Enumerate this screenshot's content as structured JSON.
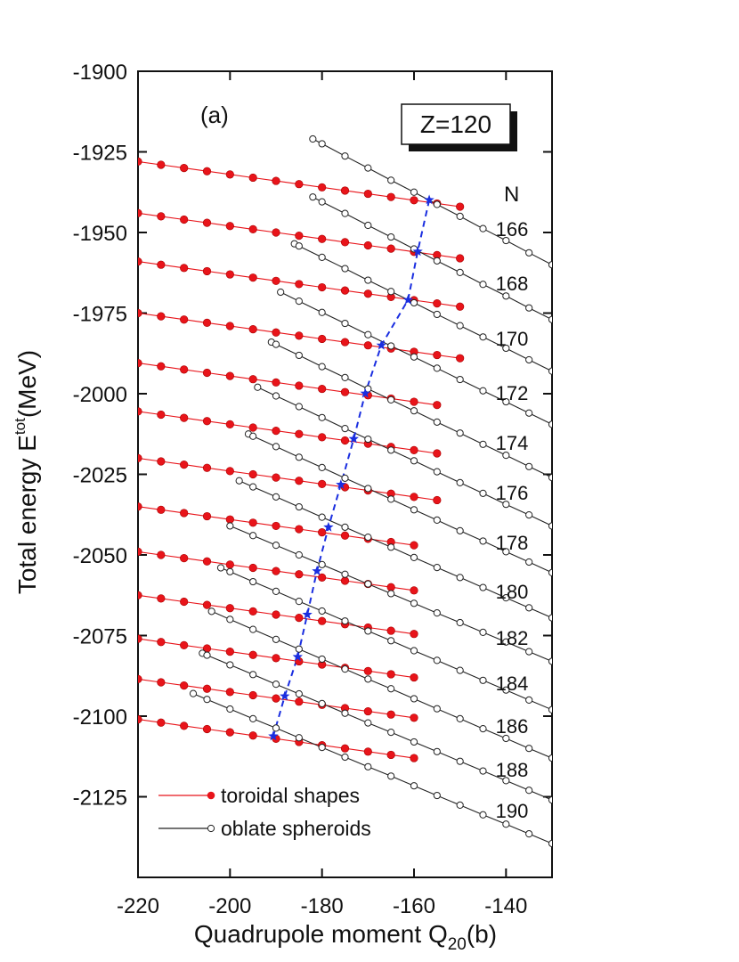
{
  "chart_data": {
    "type": "line",
    "xlabel": {
      "text": "Quadrupole moment Q",
      "sub": "20",
      "after": "(b)"
    },
    "ylabel": {
      "text": "Total energy E",
      "sup": "tot",
      "after": "(MeV)"
    },
    "annotations": [
      "(a)",
      "Z=120",
      "N"
    ],
    "n_labels": [
      "166",
      "168",
      "170",
      "172",
      "174",
      "176",
      "178",
      "180",
      "182",
      "184",
      "186",
      "188",
      "190"
    ],
    "xlim": [
      -220,
      -130
    ],
    "xticks": [
      -220,
      -200,
      -180,
      -160,
      -140
    ],
    "ylim": [
      -2150,
      -1900
    ],
    "yticks": [
      -1900,
      -1925,
      -1950,
      -1975,
      -2000,
      -2025,
      -2050,
      -2075,
      -2100,
      -2125
    ],
    "legend": "lower left",
    "series": [
      {
        "name": "toroidal shapes",
        "color": "#e8141a",
        "marker": "filled",
        "lines": [
          {
            "x": [
              -220,
              -215,
              -210,
              -205,
              -200,
              -195,
              -190,
              -185,
              -180,
              -175,
              -170,
              -165,
              -160,
              -155,
              -150
            ],
            "values": [
              -1928,
              -1929,
              -1930,
              -1931,
              -1932,
              -1933,
              -1934,
              -1935,
              -1936,
              -1937,
              -1938,
              -1939,
              -1940,
              -1941,
              -1942
            ]
          },
          {
            "x": [
              -220,
              -215,
              -210,
              -205,
              -200,
              -195,
              -190,
              -185,
              -180,
              -175,
              -170,
              -165,
              -160,
              -155,
              -150
            ],
            "values": [
              -1944,
              -1945,
              -1946,
              -1947,
              -1948,
              -1949,
              -1950,
              -1951,
              -1952,
              -1953,
              -1954,
              -1955,
              -1956,
              -1957,
              -1958
            ]
          },
          {
            "x": [
              -220,
              -215,
              -210,
              -205,
              -200,
              -195,
              -190,
              -185,
              -180,
              -175,
              -170,
              -165,
              -160,
              -155,
              -150
            ],
            "values": [
              -1959,
              -1960,
              -1961,
              -1962,
              -1963,
              -1964,
              -1965,
              -1966,
              -1967,
              -1968,
              -1969,
              -1970,
              -1971,
              -1972,
              -1973
            ]
          },
          {
            "x": [
              -220,
              -215,
              -210,
              -205,
              -200,
              -195,
              -190,
              -185,
              -180,
              -175,
              -170,
              -165,
              -160,
              -155,
              -150
            ],
            "values": [
              -1975,
              -1976,
              -1977,
              -1978,
              -1979,
              -1980,
              -1981,
              -1982,
              -1983,
              -1984,
              -1985,
              -1986,
              -1987,
              -1988,
              -1989
            ]
          },
          {
            "x": [
              -220,
              -215,
              -210,
              -205,
              -200,
              -195,
              -190,
              -185,
              -180,
              -175,
              -170,
              -165,
              -160,
              -155
            ],
            "values": [
              -1990.5,
              -1991.5,
              -1992.5,
              -1993.5,
              -1994.5,
              -1995.5,
              -1996.5,
              -1997.5,
              -1998.5,
              -1999.5,
              -2000.5,
              -2001.5,
              -2002.5,
              -2003.5
            ]
          },
          {
            "x": [
              -220,
              -215,
              -210,
              -205,
              -200,
              -195,
              -190,
              -185,
              -180,
              -175,
              -170,
              -165,
              -160,
              -155
            ],
            "values": [
              -2005.5,
              -2006.5,
              -2007.5,
              -2008.5,
              -2009.5,
              -2010.5,
              -2011.5,
              -2012.5,
              -2013.5,
              -2014.5,
              -2015.5,
              -2016.5,
              -2017.5,
              -2018.5
            ]
          },
          {
            "x": [
              -220,
              -215,
              -210,
              -205,
              -200,
              -195,
              -190,
              -185,
              -180,
              -175,
              -170,
              -165,
              -160,
              -155
            ],
            "values": [
              -2020,
              -2021,
              -2022,
              -2023,
              -2024,
              -2025,
              -2026,
              -2027,
              -2028,
              -2029,
              -2030,
              -2031,
              -2032,
              -2033
            ]
          },
          {
            "x": [
              -220,
              -215,
              -210,
              -205,
              -200,
              -195,
              -190,
              -185,
              -180,
              -175,
              -170,
              -165,
              -160
            ],
            "values": [
              -2035,
              -2036,
              -2037,
              -2038,
              -2039,
              -2040,
              -2041,
              -2042,
              -2043,
              -2044,
              -2045,
              -2046,
              -2047
            ]
          },
          {
            "x": [
              -220,
              -215,
              -210,
              -205,
              -200,
              -195,
              -190,
              -185,
              -180,
              -175,
              -170,
              -165,
              -160
            ],
            "values": [
              -2049,
              -2050,
              -2051,
              -2052,
              -2053,
              -2054,
              -2055,
              -2056,
              -2057,
              -2058,
              -2059,
              -2060,
              -2061
            ]
          },
          {
            "x": [
              -220,
              -215,
              -210,
              -205,
              -200,
              -195,
              -190,
              -185,
              -180,
              -175,
              -170,
              -165,
              -160
            ],
            "values": [
              -2062.5,
              -2063.5,
              -2064.5,
              -2065.5,
              -2066.5,
              -2067.5,
              -2068.5,
              -2069.5,
              -2070.5,
              -2071.5,
              -2072.5,
              -2073.5,
              -2074.5
            ]
          },
          {
            "x": [
              -220,
              -215,
              -210,
              -205,
              -200,
              -195,
              -190,
              -185,
              -180,
              -175,
              -170,
              -165,
              -160
            ],
            "values": [
              -2076,
              -2077,
              -2078,
              -2079,
              -2080,
              -2081,
              -2082,
              -2083,
              -2084,
              -2085,
              -2086,
              -2087,
              -2088
            ]
          },
          {
            "x": [
              -220,
              -215,
              -210,
              -205,
              -200,
              -195,
              -190,
              -185,
              -180,
              -175,
              -170,
              -165,
              -160
            ],
            "values": [
              -2088.5,
              -2089.5,
              -2090.5,
              -2091.5,
              -2092.5,
              -2093.5,
              -2094.5,
              -2095.5,
              -2096.5,
              -2097.5,
              -2098.5,
              -2099.5,
              -2100.5
            ]
          },
          {
            "x": [
              -220,
              -215,
              -210,
              -205,
              -200,
              -195,
              -190,
              -185,
              -180,
              -175,
              -170,
              -165,
              -160
            ],
            "values": [
              -2101,
              -2102,
              -2103,
              -2104,
              -2105,
              -2106,
              -2107,
              -2108,
              -2109,
              -2110,
              -2111,
              -2112,
              -2113
            ]
          }
        ]
      },
      {
        "name": "oblate spheroids",
        "color": "#222222",
        "marker": "open",
        "lines": [
          {
            "x": [
              -182,
              -180,
              -175,
              -170,
              -165,
              -160,
              -155,
              -150,
              -145,
              -140,
              -135,
              -130
            ],
            "values": [
              -1921,
              -1922.5,
              -1926.3,
              -1930,
              -1933.8,
              -1937.5,
              -1941.3,
              -1945,
              -1948.8,
              -1952.5,
              -1956.3,
              -1960
            ]
          },
          {
            "x": [
              -182,
              -180,
              -175,
              -170,
              -165,
              -160,
              -155,
              -150,
              -145,
              -140,
              -135,
              -130
            ],
            "values": [
              -1939,
              -1940.5,
              -1944.1,
              -1947.8,
              -1951.4,
              -1955.1,
              -1958.8,
              -1962.4,
              -1966.1,
              -1969.7,
              -1973.4,
              -1977
            ]
          },
          {
            "x": [
              -186,
              -185,
              -180,
              -175,
              -170,
              -165,
              -160,
              -155,
              -150,
              -145,
              -140,
              -135,
              -130
            ],
            "values": [
              -1953.5,
              -1954.2,
              -1957.7,
              -1961.2,
              -1964.8,
              -1968.3,
              -1971.8,
              -1975.4,
              -1978.9,
              -1982.4,
              -1985.9,
              -1989.5,
              -1993
            ]
          },
          {
            "x": [
              -189,
              -185,
              -180,
              -175,
              -170,
              -165,
              -160,
              -155,
              -150,
              -145,
              -140,
              -135,
              -130
            ],
            "values": [
              -1968.5,
              -1971.3,
              -1974.8,
              -1978.2,
              -1981.7,
              -1985.2,
              -1988.6,
              -1992.1,
              -1995.6,
              -1999.1,
              -2002.5,
              -2006,
              -2009.5
            ]
          },
          {
            "x": [
              -191,
              -190,
              -185,
              -180,
              -175,
              -170,
              -165,
              -160,
              -155,
              -150,
              -145,
              -140,
              -135,
              -130
            ],
            "values": [
              -1984,
              -1984.7,
              -1988.1,
              -1991.6,
              -1995,
              -1998.5,
              -2001.9,
              -2005.3,
              -2008.8,
              -2012.2,
              -2015.7,
              -2019.1,
              -2022.6,
              -2026
            ]
          },
          {
            "x": [
              -194,
              -190,
              -185,
              -180,
              -175,
              -170,
              -165,
              -160,
              -155,
              -150,
              -145,
              -140,
              -135,
              -130
            ],
            "values": [
              -1998,
              -2000.7,
              -2004,
              -2007.4,
              -2010.8,
              -2014.1,
              -2017.5,
              -2020.8,
              -2024.2,
              -2027.6,
              -2030.9,
              -2034.3,
              -2037.6,
              -2041
            ]
          },
          {
            "x": [
              -196,
              -195,
              -190,
              -185,
              -180,
              -175,
              -170,
              -165,
              -160,
              -155,
              -150,
              -145,
              -140,
              -135,
              -130
            ],
            "values": [
              -2012.5,
              -2013.2,
              -2016.4,
              -2019.7,
              -2022.9,
              -2026.2,
              -2029.4,
              -2032.7,
              -2036,
              -2039.2,
              -2042.5,
              -2045.7,
              -2049,
              -2052.2,
              -2055.5
            ]
          },
          {
            "x": [
              -198,
              -195,
              -190,
              -185,
              -180,
              -175,
              -170,
              -165,
              -160,
              -155,
              -150,
              -145,
              -140,
              -135,
              -130
            ],
            "values": [
              -2027,
              -2028.9,
              -2032,
              -2035.1,
              -2038.3,
              -2041.4,
              -2044.5,
              -2047.6,
              -2050.8,
              -2053.9,
              -2057,
              -2060.1,
              -2063.3,
              -2066.4,
              -2069.5
            ]
          },
          {
            "x": [
              -200,
              -195,
              -190,
              -185,
              -180,
              -175,
              -170,
              -165,
              -160,
              -155,
              -150,
              -145,
              -140,
              -135,
              -130
            ],
            "values": [
              -2041,
              -2044,
              -2047,
              -2050,
              -2053,
              -2056,
              -2059,
              -2062,
              -2065,
              -2068,
              -2071,
              -2074,
              -2077,
              -2080,
              -2083
            ]
          },
          {
            "x": [
              -202,
              -200,
              -195,
              -190,
              -185,
              -180,
              -175,
              -170,
              -165,
              -160,
              -155,
              -150,
              -145,
              -140,
              -135,
              -130
            ],
            "values": [
              -2054,
              -2055.2,
              -2058.3,
              -2061.3,
              -2064.4,
              -2067.4,
              -2070.5,
              -2073.6,
              -2076.6,
              -2079.7,
              -2082.7,
              -2085.8,
              -2088.9,
              -2091.9,
              -2095,
              -2098
            ]
          },
          {
            "x": [
              -204,
              -200,
              -195,
              -190,
              -185,
              -180,
              -175,
              -170,
              -165,
              -160,
              -155,
              -150,
              -145,
              -140,
              -135,
              -130
            ],
            "values": [
              -2067.5,
              -2070,
              -2073.1,
              -2076.2,
              -2079.2,
              -2082.3,
              -2085.4,
              -2088.5,
              -2091.5,
              -2094.6,
              -2097.7,
              -2100.8,
              -2103.9,
              -2106.9,
              -2110,
              -2113
            ]
          },
          {
            "x": [
              -206,
              -205,
              -200,
              -195,
              -190,
              -185,
              -180,
              -175,
              -170,
              -165,
              -160,
              -155,
              -150,
              -145,
              -140,
              -135,
              -130
            ],
            "values": [
              -2080.5,
              -2081.1,
              -2084.1,
              -2087.1,
              -2090.1,
              -2093.1,
              -2096.1,
              -2099.1,
              -2102.1,
              -2105,
              -2108,
              -2111,
              -2114,
              -2117,
              -2120,
              -2123,
              -2126
            ]
          },
          {
            "x": [
              -208,
              -205,
              -200,
              -195,
              -190,
              -185,
              -180,
              -175,
              -170,
              -165,
              -160,
              -155,
              -150,
              -145,
              -140,
              -135,
              -130
            ],
            "values": [
              -2093,
              -2094.8,
              -2097.8,
              -2100.8,
              -2103.7,
              -2106.7,
              -2109.7,
              -2112.7,
              -2115.7,
              -2118.6,
              -2121.6,
              -2124.6,
              -2127.6,
              -2130.6,
              -2133.5,
              -2136.5,
              -2139.5
            ]
          }
        ]
      },
      {
        "color": "#1a2ee0",
        "marker": "star",
        "dashed": true,
        "lines": [
          {
            "x": [
              -156.7,
              -159.2,
              -161.3,
              -167.1,
              -170.6,
              -173.1,
              -175.9,
              -178.6,
              -181.1,
              -183.2,
              -185.3,
              -188.1,
              -190.6
            ],
            "values": [
              -1939.9,
              -1955.9,
              -1970.9,
              -1985,
              -1999.9,
              -2014,
              -2028.2,
              -2041.4,
              -2055,
              -2068.5,
              -2081.6,
              -2093.8,
              -2106.2
            ]
          }
        ]
      }
    ]
  }
}
